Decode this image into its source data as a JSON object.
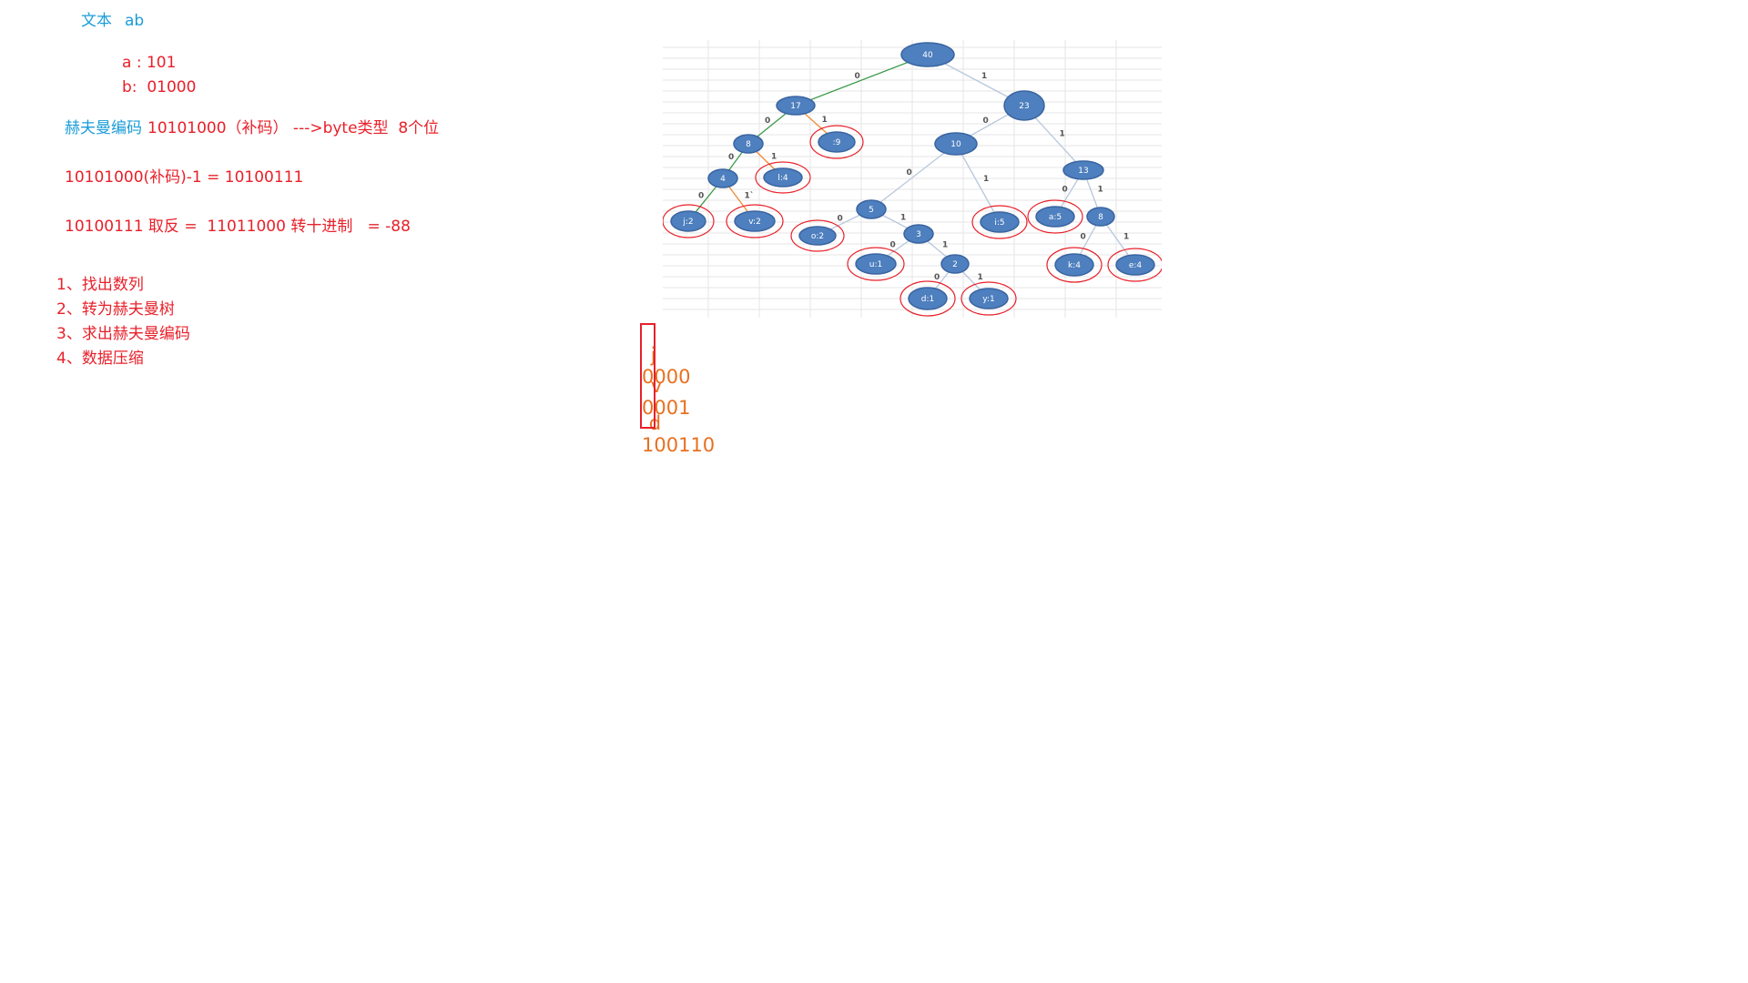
{
  "notes": {
    "text_label": "文本",
    "text_value": "ab",
    "code_a": "a : 101",
    "code_b": "b:  01000",
    "huffman_label": "赫夫曼编码",
    "huffman_detail": "10101000（补码） --->byte类型  8个位",
    "line_minus_one": "10101000(补码)-1 = 10100111",
    "line_invert": "10100111 取反 =  11011000 转十进制   = -88"
  },
  "steps": [
    "1、找出数列",
    "2、转为赫夫曼树",
    "3、求出赫夫曼编码",
    "4、数据压缩"
  ],
  "codes": [
    {
      "letter": "j",
      "code": "0000"
    },
    {
      "letter": "v",
      "code": "0001"
    },
    {
      "letter": "d",
      "code": "100110"
    }
  ],
  "tree": {
    "nodes": [
      {
        "id": "n40",
        "label": "40",
        "highlight": false
      },
      {
        "id": "n17",
        "label": "17",
        "highlight": false
      },
      {
        "id": "n23",
        "label": "23",
        "highlight": false
      },
      {
        "id": "n8a",
        "label": "8",
        "highlight": false
      },
      {
        "id": "nsp9",
        "label": ":9",
        "highlight": true
      },
      {
        "id": "n10",
        "label": "10",
        "highlight": false
      },
      {
        "id": "n13",
        "label": "13",
        "highlight": false
      },
      {
        "id": "n4",
        "label": "4",
        "highlight": false
      },
      {
        "id": "nl4",
        "label": "l:4",
        "highlight": true
      },
      {
        "id": "nj2",
        "label": "j:2",
        "highlight": true
      },
      {
        "id": "nv2",
        "label": "v:2",
        "highlight": true
      },
      {
        "id": "n5",
        "label": "5",
        "highlight": false
      },
      {
        "id": "ni5",
        "label": "i:5",
        "highlight": true
      },
      {
        "id": "na5",
        "label": "a:5",
        "highlight": true
      },
      {
        "id": "n8b",
        "label": "8",
        "highlight": false
      },
      {
        "id": "no2",
        "label": "o:2",
        "highlight": true
      },
      {
        "id": "n3",
        "label": "3",
        "highlight": false
      },
      {
        "id": "nk4",
        "label": "k:4",
        "highlight": true
      },
      {
        "id": "ne4",
        "label": "e:4",
        "highlight": true
      },
      {
        "id": "nu1",
        "label": "u:1",
        "highlight": true
      },
      {
        "id": "n2",
        "label": "2",
        "highlight": false
      },
      {
        "id": "nd1",
        "label": "d:1",
        "highlight": true
      },
      {
        "id": "ny1",
        "label": "y:1",
        "highlight": true
      }
    ],
    "edges": [
      {
        "from": "n40",
        "to": "n17",
        "label": "0",
        "color": "#3a9a4a"
      },
      {
        "from": "n40",
        "to": "n23",
        "label": "1",
        "color": "#b8c8dc"
      },
      {
        "from": "n17",
        "to": "n8a",
        "label": "0",
        "color": "#3a9a4a"
      },
      {
        "from": "n17",
        "to": "nsp9",
        "label": "1",
        "color": "#f08a30"
      },
      {
        "from": "n23",
        "to": "n10",
        "label": "0",
        "color": "#b8c8dc"
      },
      {
        "from": "n23",
        "to": "n13",
        "label": "1",
        "color": "#b8c8dc"
      },
      {
        "from": "n8a",
        "to": "n4",
        "label": "0",
        "color": "#3a9a4a"
      },
      {
        "from": "n8a",
        "to": "nl4",
        "label": "1",
        "color": "#f08a30"
      },
      {
        "from": "n4",
        "to": "nj2",
        "label": "0",
        "color": "#3a9a4a"
      },
      {
        "from": "n4",
        "to": "nv2",
        "label": "1`",
        "color": "#f08a30"
      },
      {
        "from": "n10",
        "to": "n5",
        "label": "0",
        "color": "#b8c8dc"
      },
      {
        "from": "n10",
        "to": "ni5",
        "label": "1",
        "color": "#b8c8dc"
      },
      {
        "from": "n13",
        "to": "na5",
        "label": "0",
        "color": "#b8c8dc"
      },
      {
        "from": "n13",
        "to": "n8b",
        "label": "1",
        "color": "#b8c8dc"
      },
      {
        "from": "n5",
        "to": "no2",
        "label": "0",
        "color": "#b8c8dc"
      },
      {
        "from": "n5",
        "to": "n3",
        "label": "1",
        "color": "#b8c8dc"
      },
      {
        "from": "n8b",
        "to": "nk4",
        "label": "0",
        "color": "#b8c8dc"
      },
      {
        "from": "n8b",
        "to": "ne4",
        "label": "1",
        "color": "#b8c8dc"
      },
      {
        "from": "n3",
        "to": "nu1",
        "label": "0",
        "color": "#b8c8dc"
      },
      {
        "from": "n3",
        "to": "n2",
        "label": "1",
        "color": "#b8c8dc"
      },
      {
        "from": "n2",
        "to": "nd1",
        "label": "0",
        "color": "#b8c8dc"
      },
      {
        "from": "n2",
        "to": "ny1",
        "label": "1",
        "color": "#b8c8dc"
      }
    ]
  },
  "colors": {
    "node_fill": "#4e7fbe",
    "node_stroke": "#3a64a0",
    "node_text": "#ffffff",
    "highlight_ring": "#e8202a",
    "grid": "#e6e6e6",
    "blue_text": "#1a9cd8",
    "red_text": "#e8202a",
    "orange_text": "#e87020"
  }
}
